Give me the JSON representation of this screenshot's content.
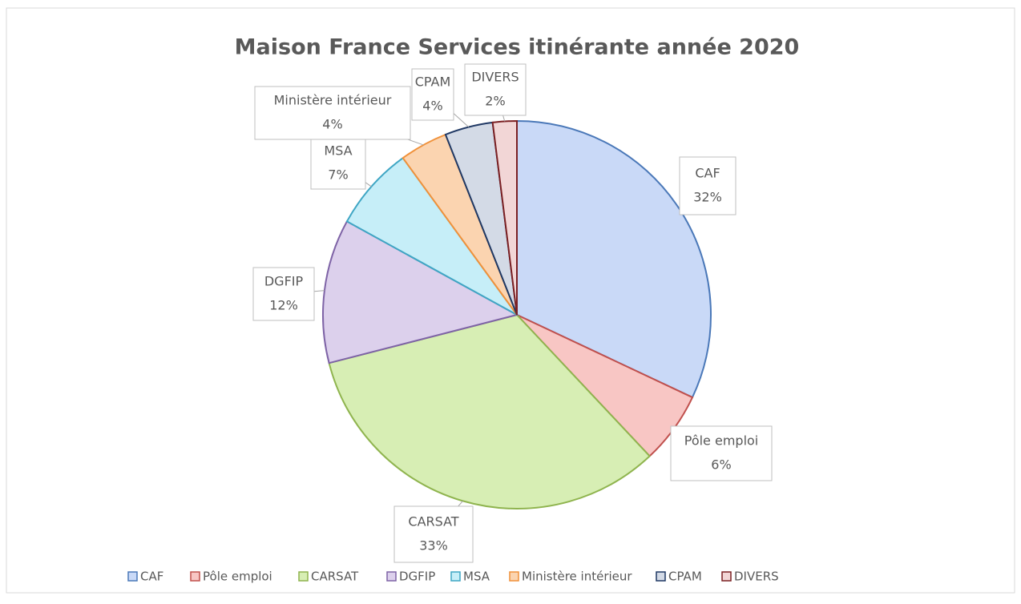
{
  "chart_data": {
    "type": "pie",
    "title": "Maison France Services itinérante année 2020",
    "categories": [
      "CAF",
      "Pôle emploi",
      "CARSAT",
      "DGFIP",
      "MSA",
      "Ministère intérieur",
      "CPAM",
      "DIVERS"
    ],
    "values": [
      32,
      6,
      33,
      12,
      7,
      4,
      4,
      2
    ],
    "value_labels": [
      "32%",
      "6%",
      "33%",
      "12%",
      "7%",
      "4%",
      "4%",
      "2%"
    ],
    "colors": [
      "#c9d9f7",
      "#f8c6c4",
      "#d7eeb4",
      "#dcd0ec",
      "#c6eef8",
      "#fbd4b0",
      "#d3dae6",
      "#f2d6d6"
    ],
    "border_colors": [
      "#4a78b8",
      "#c0504d",
      "#8fb44e",
      "#7e63a6",
      "#3fa6c4",
      "#f0913a",
      "#1f3864",
      "#7b2023"
    ],
    "legend": "bottom"
  }
}
